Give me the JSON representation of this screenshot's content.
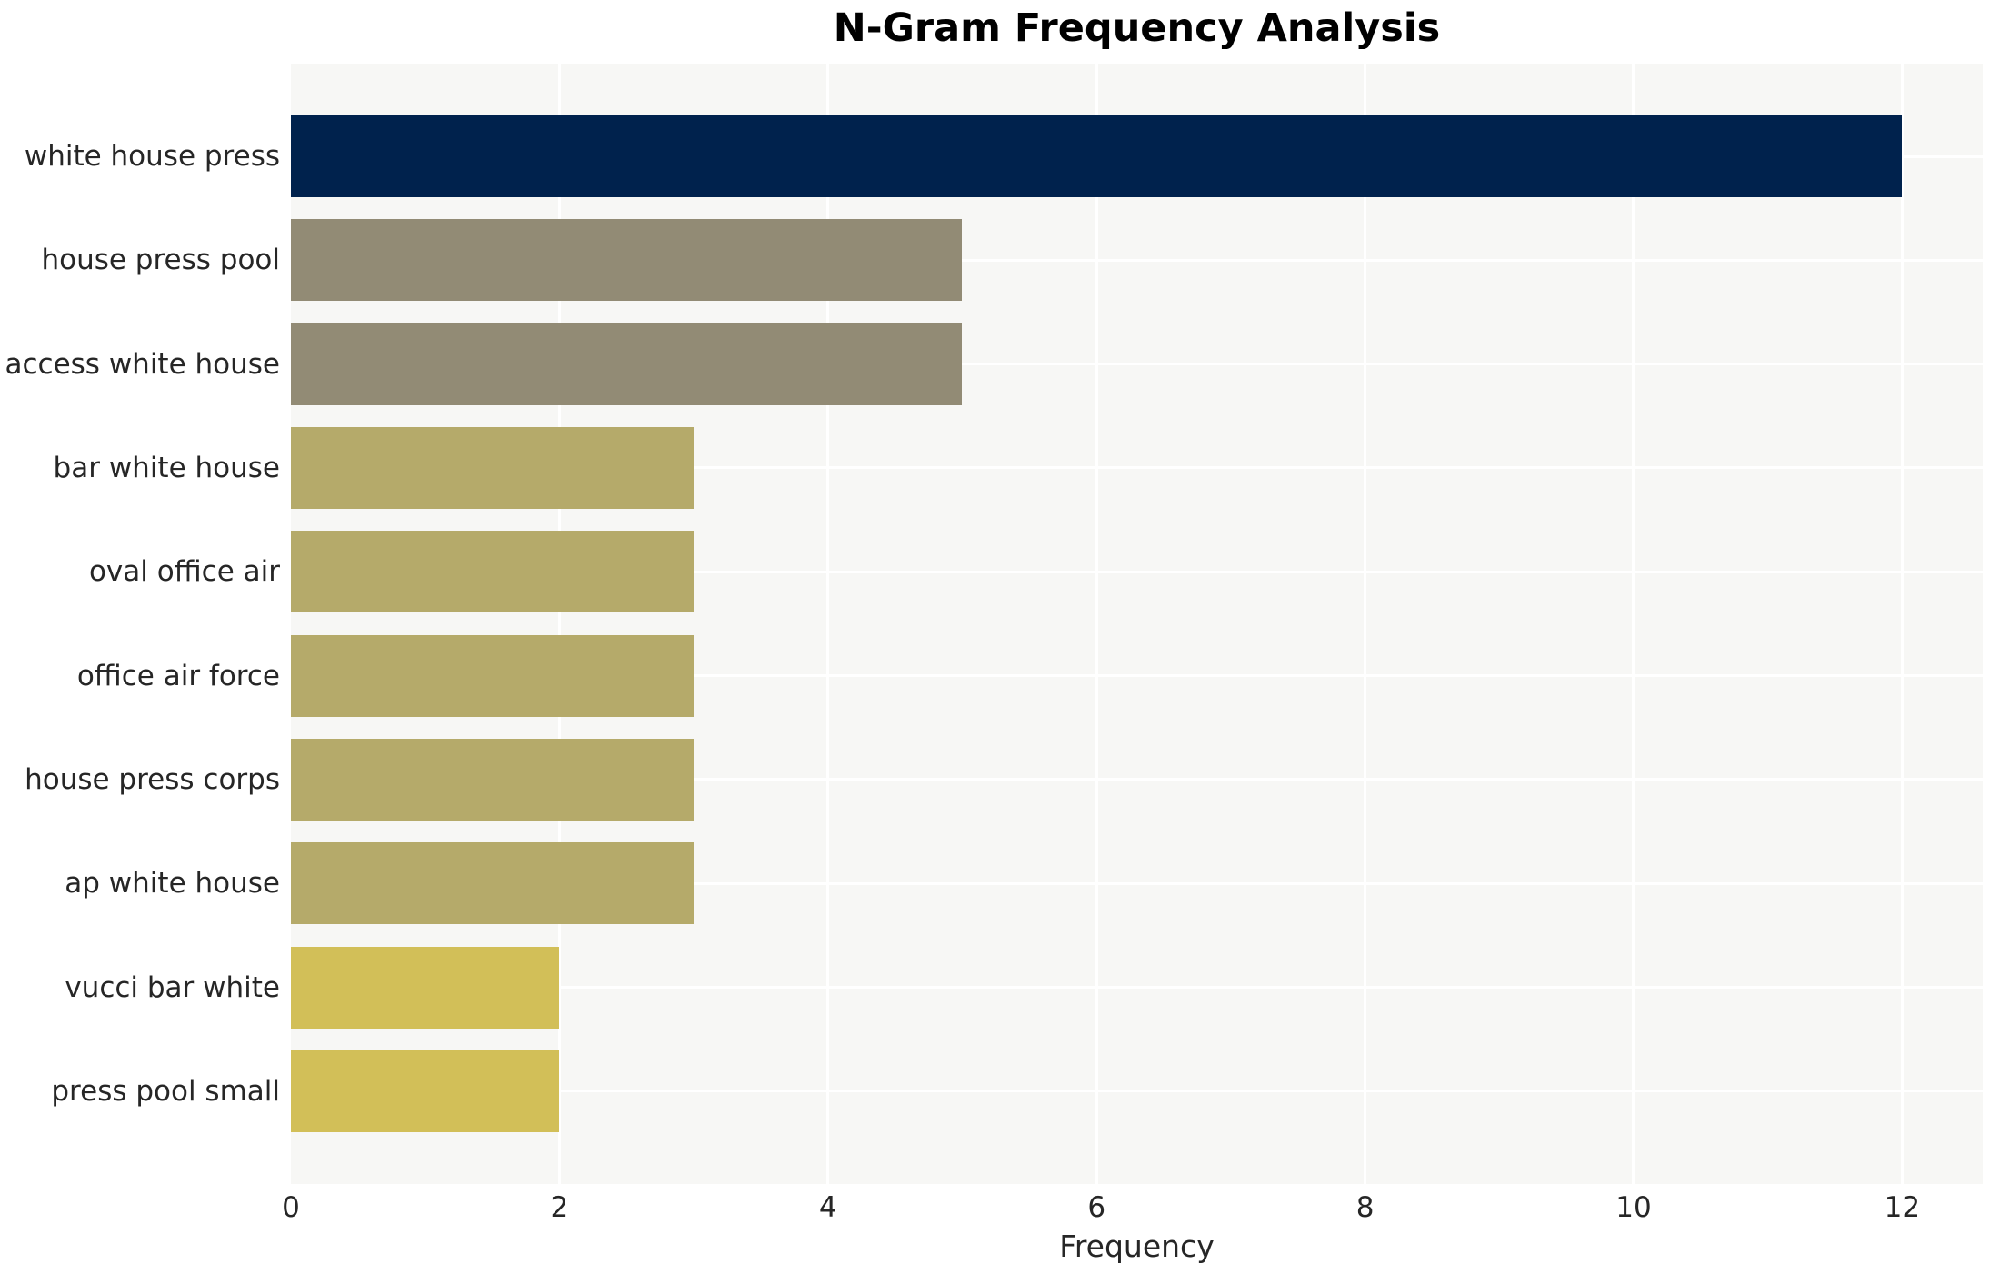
{
  "chart_data": {
    "type": "bar",
    "orientation": "horizontal",
    "title": "N-Gram Frequency Analysis",
    "xlabel": "Frequency",
    "ylabel": "",
    "categories": [
      "white house press",
      "house press pool",
      "access white house",
      "bar white house",
      "oval office air",
      "office air force",
      "house press corps",
      "ap white house",
      "vucci bar white",
      "press pool small"
    ],
    "values": [
      12,
      5,
      5,
      3,
      3,
      3,
      3,
      3,
      2,
      2
    ],
    "bar_colors": [
      "#00224d",
      "#928b75",
      "#928b75",
      "#b5aa6a",
      "#b5aa6a",
      "#b5aa6a",
      "#b5aa6a",
      "#b5aa6a",
      "#d2bf58",
      "#d2bf58"
    ],
    "xticks": [
      0,
      2,
      4,
      6,
      8,
      10,
      12
    ],
    "xlim": [
      0,
      12.6
    ],
    "grid": "on",
    "legend": "none",
    "plot_bg_color": "#f7f7f5",
    "grid_color": "#ffffff",
    "text_color": "#262626",
    "title_color": "#000000"
  }
}
